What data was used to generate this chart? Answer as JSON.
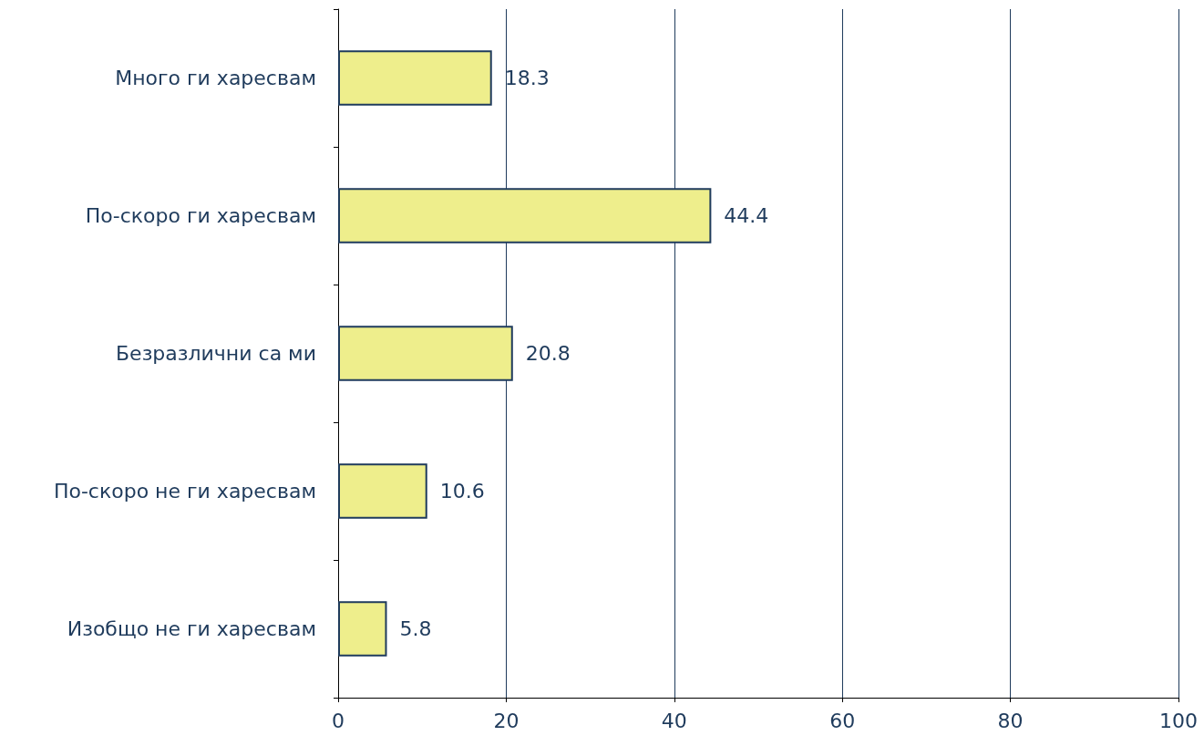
{
  "chart_data": {
    "type": "bar",
    "orientation": "horizontal",
    "categories": [
      "Много ги харесвам",
      "По-скоро ги харесвам",
      "Безразлични са ми",
      "По-скоро не ги харесвам",
      "Изобщо не ги харесвам"
    ],
    "values": [
      18.3,
      44.4,
      20.8,
      10.6,
      5.8
    ],
    "color": "#eeee8c",
    "xlim": [
      0,
      100
    ],
    "xticks": [
      0,
      20,
      40,
      60,
      80,
      100
    ],
    "grid": "x",
    "data_labels": true
  }
}
